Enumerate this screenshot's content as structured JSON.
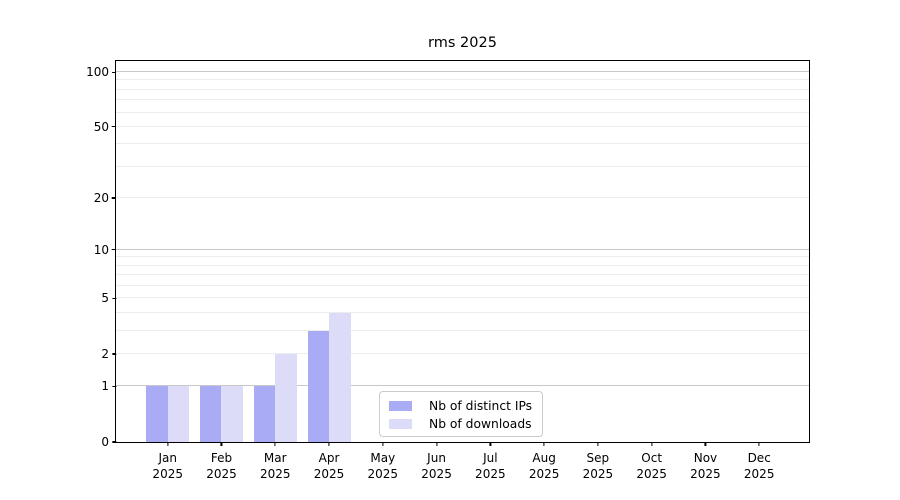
{
  "chart_data": {
    "type": "bar",
    "title": "rms 2025",
    "categories": [
      "Jan",
      "Feb",
      "Mar",
      "Apr",
      "May",
      "Jun",
      "Jul",
      "Aug",
      "Sep",
      "Oct",
      "Nov",
      "Dec"
    ],
    "x_tick_year": "2025",
    "series": [
      {
        "name": "Nb of distinct IPs",
        "color": "#a9abf5",
        "values": [
          1,
          1,
          1,
          3,
          0,
          0,
          0,
          0,
          0,
          0,
          0,
          0
        ]
      },
      {
        "name": "Nb of downloads",
        "color": "#dcdcf9",
        "values": [
          1,
          1,
          2,
          4,
          0,
          0,
          0,
          0,
          0,
          0,
          0,
          0
        ]
      }
    ],
    "yscale": "log1p",
    "ylim": [
      0,
      115
    ],
    "y_tick_labels": [
      "0",
      "1",
      "2",
      "5",
      "10",
      "20",
      "50",
      "100"
    ],
    "y_tick_values": [
      0,
      1,
      2,
      5,
      10,
      20,
      50,
      100
    ],
    "y_major_gridlines": [
      1,
      10,
      100
    ],
    "y_minor_gridlines": [
      2,
      3,
      4,
      5,
      6,
      7,
      8,
      9,
      20,
      30,
      40,
      50,
      60,
      70,
      80,
      90
    ],
    "grid": "on",
    "legend_position": "inside-bottom-center",
    "colors": {
      "grid_major": "#c8c8c8",
      "grid_minor": "#ececec",
      "frame": "#000000",
      "text": "#000000"
    }
  }
}
